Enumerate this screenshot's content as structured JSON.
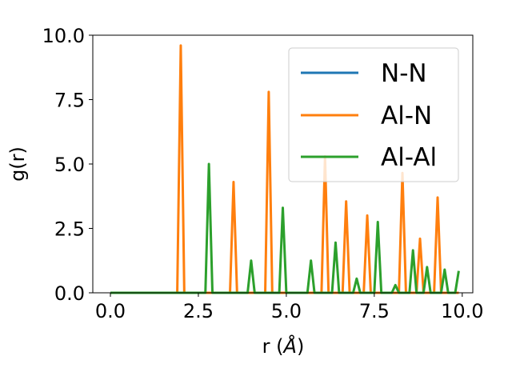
{
  "chart_data": {
    "type": "line",
    "xlabel": "r (",
    "xlabel_symbol": "Å",
    "xlabel_close": ")",
    "ylabel": "g(r)",
    "xlim": [
      -0.5,
      10.3
    ],
    "ylim": [
      0,
      10
    ],
    "xticks": [
      "0.0",
      "2.5",
      "5.0",
      "7.5",
      "10.0"
    ],
    "yticks": [
      "0.0",
      "2.5",
      "5.0",
      "7.5",
      "10.0"
    ],
    "grid": false,
    "legend_position": "top-right",
    "series": [
      {
        "name": "N-N",
        "color": "#1f77b4",
        "points": [
          [
            0,
            0
          ],
          [
            9.9,
            0
          ]
        ]
      },
      {
        "name": "Al-N",
        "color": "#ff7f0e",
        "points": [
          [
            0,
            0
          ],
          [
            1.9,
            0
          ],
          [
            2.0,
            9.6
          ],
          [
            2.1,
            0
          ],
          [
            3.4,
            0
          ],
          [
            3.5,
            4.3
          ],
          [
            3.6,
            0
          ],
          [
            4.4,
            0
          ],
          [
            4.5,
            7.8
          ],
          [
            4.6,
            0
          ],
          [
            6.0,
            0
          ],
          [
            6.1,
            5.3
          ],
          [
            6.2,
            0
          ],
          [
            6.6,
            0
          ],
          [
            6.7,
            3.55
          ],
          [
            6.8,
            0
          ],
          [
            7.2,
            0
          ],
          [
            7.3,
            3.0
          ],
          [
            7.4,
            0
          ],
          [
            8.2,
            0
          ],
          [
            8.3,
            4.65
          ],
          [
            8.4,
            0
          ],
          [
            8.7,
            0
          ],
          [
            8.8,
            2.1
          ],
          [
            8.9,
            0
          ],
          [
            9.2,
            0
          ],
          [
            9.3,
            3.7
          ],
          [
            9.4,
            0
          ],
          [
            9.9,
            0
          ]
        ]
      },
      {
        "name": "Al-Al",
        "color": "#2ca02c",
        "points": [
          [
            0,
            0
          ],
          [
            2.7,
            0
          ],
          [
            2.8,
            5.0
          ],
          [
            2.9,
            0
          ],
          [
            3.9,
            0
          ],
          [
            4.0,
            1.25
          ],
          [
            4.1,
            0
          ],
          [
            4.8,
            0
          ],
          [
            4.9,
            3.3
          ],
          [
            5.0,
            0
          ],
          [
            5.6,
            0
          ],
          [
            5.7,
            1.25
          ],
          [
            5.8,
            0
          ],
          [
            6.3,
            0
          ],
          [
            6.4,
            1.95
          ],
          [
            6.5,
            0
          ],
          [
            6.9,
            0
          ],
          [
            7.0,
            0.55
          ],
          [
            7.1,
            0
          ],
          [
            7.5,
            0
          ],
          [
            7.6,
            2.75
          ],
          [
            7.7,
            0
          ],
          [
            8.0,
            0
          ],
          [
            8.1,
            0.3
          ],
          [
            8.2,
            0
          ],
          [
            8.5,
            0
          ],
          [
            8.6,
            1.65
          ],
          [
            8.7,
            0
          ],
          [
            8.9,
            0
          ],
          [
            9.0,
            1.0
          ],
          [
            9.1,
            0
          ],
          [
            9.4,
            0
          ],
          [
            9.5,
            0.9
          ],
          [
            9.6,
            0
          ],
          [
            9.8,
            0
          ],
          [
            9.9,
            0.85
          ]
        ]
      }
    ]
  }
}
